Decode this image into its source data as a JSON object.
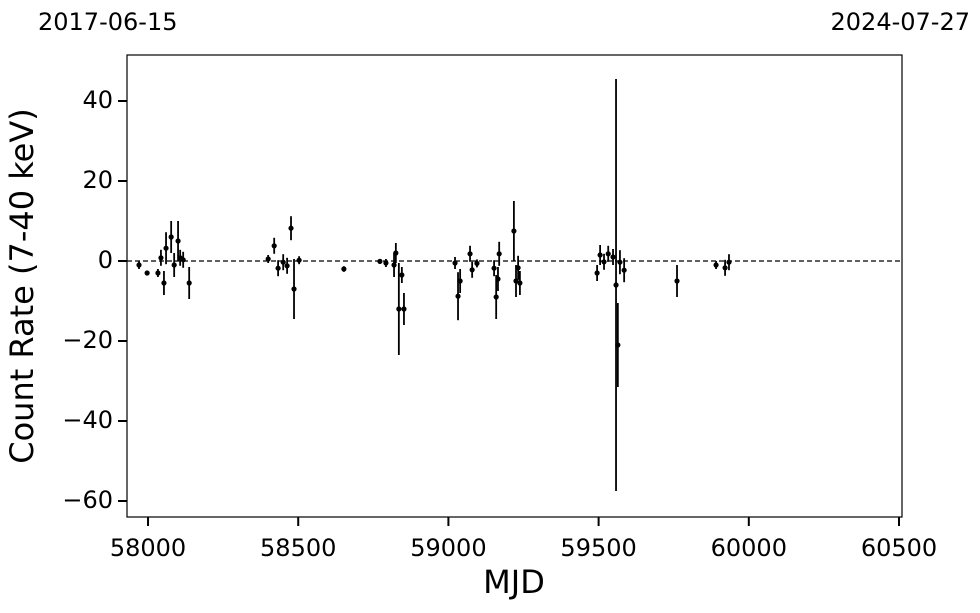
{
  "chart_data": {
    "type": "errorbar",
    "date_labels": [
      "2017-06-15",
      "2024-07-27"
    ],
    "x_label": "MJD",
    "y_label": "Count Rate (7-40 keV)",
    "color": "#000000",
    "reference_line": 0,
    "x": [
      57970,
      57997,
      58033,
      58043,
      58053,
      58060,
      58077,
      58087,
      58100,
      58107,
      58117,
      58137,
      58400,
      58420,
      58433,
      58450,
      58463,
      58476,
      58486,
      58503,
      58652,
      58772,
      58792,
      58819,
      58825,
      58835,
      58845,
      58852,
      59022,
      59032,
      59039,
      59072,
      59079,
      59095,
      59152,
      59159,
      59165,
      59169,
      59218,
      59225,
      59232,
      59238,
      59495,
      59505,
      59518,
      59532,
      59548,
      59558,
      59564,
      59571,
      59585,
      59761,
      59891,
      59921,
      59934
    ],
    "values": [
      -1,
      -3,
      -3,
      0.8,
      -5.5,
      3.2,
      6,
      -1,
      5,
      0.8,
      0.3,
      -5.5,
      0.5,
      3.8,
      -1.8,
      -0.3,
      -1.2,
      8.2,
      -7,
      0.2,
      -2,
      -0.1,
      -0.5,
      -1,
      2,
      -12,
      -3.5,
      -12,
      -0.5,
      -8.8,
      -5,
      1.8,
      -2.2,
      -0.6,
      -1.8,
      -9,
      -4.5,
      1.8,
      7.5,
      -5,
      -1.7,
      -5.5,
      -3,
      1.5,
      -0.2,
      1.8,
      1,
      -6,
      -21,
      -0.3,
      -2.3,
      -5,
      -1,
      -1.7,
      -0.3
    ],
    "errors": [
      1,
      0.5,
      1,
      2,
      3,
      4,
      4,
      3,
      5,
      2,
      2,
      4,
      1,
      2,
      2,
      2,
      2,
      3,
      7.5,
      1,
      0.7,
      0.5,
      1,
      3,
      2.5,
      11.5,
      2,
      4,
      1.5,
      6,
      3,
      2,
      2,
      1,
      2,
      5.5,
      3,
      3,
      7.5,
      4,
      3,
      3,
      2,
      2.5,
      2,
      2,
      2,
      51.5,
      10.5,
      3,
      3,
      4,
      1,
      2,
      2
    ],
    "xlim": [
      57930,
      60510
    ],
    "ylim": [
      -64,
      51.5
    ],
    "xticks": [
      58000,
      58500,
      59000,
      59500,
      60000,
      60500
    ],
    "yticks": [
      40,
      20,
      0,
      {
        "value": -20,
        "label": "−20"
      },
      {
        "value": -40,
        "label": "−40"
      },
      {
        "value": -60,
        "label": "−60"
      }
    ]
  }
}
